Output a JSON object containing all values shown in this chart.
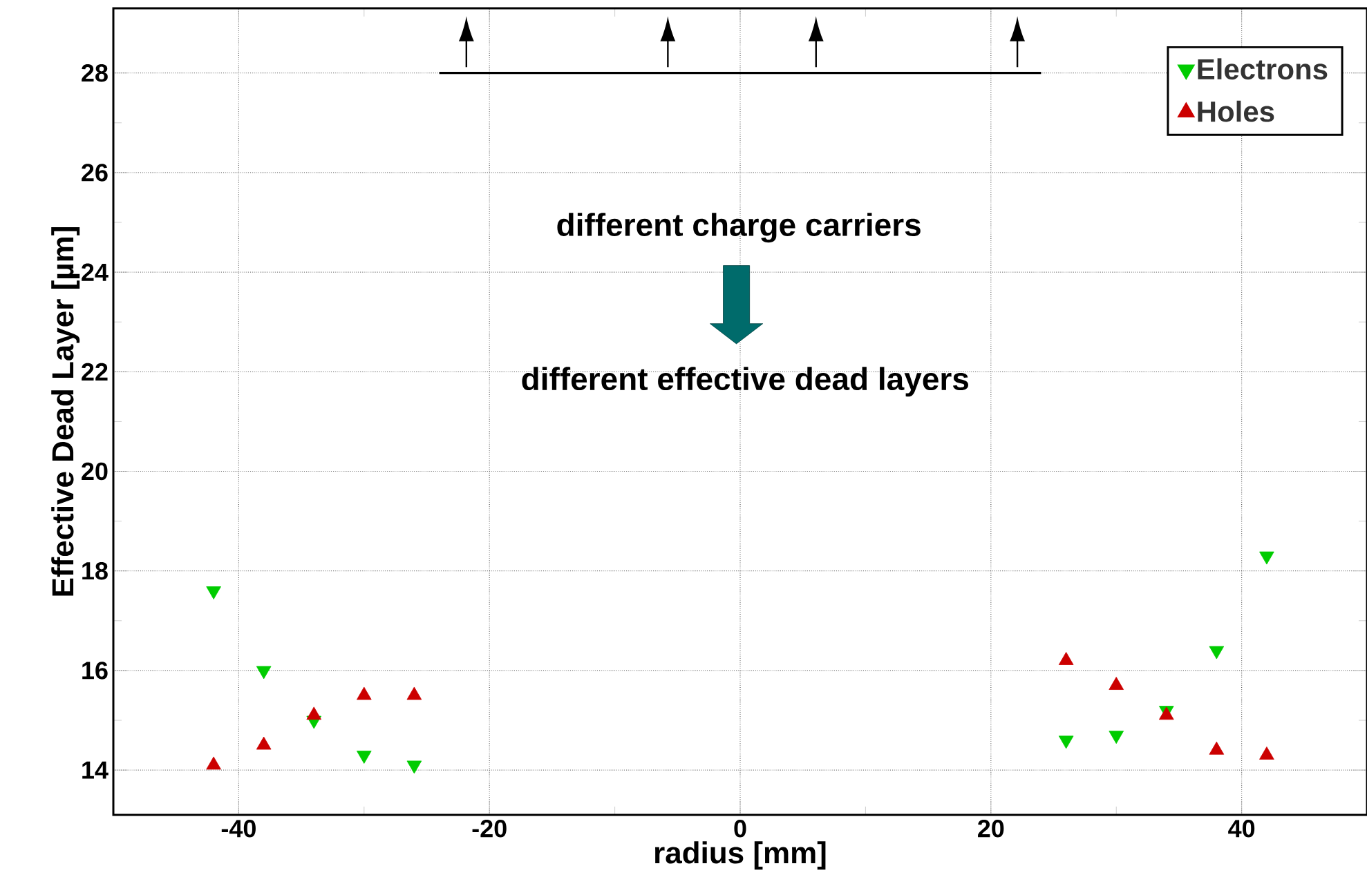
{
  "chart_data": {
    "type": "scatter",
    "xlabel": "radius [mm]",
    "ylabel": "Effective Dead Layer [µm]",
    "xlim": [
      -50,
      50
    ],
    "ylim": [
      13.1,
      29.3
    ],
    "xticks": [
      -40,
      -20,
      0,
      20,
      40
    ],
    "yticks": [
      14,
      16,
      18,
      20,
      22,
      24,
      26,
      28
    ],
    "grid": true,
    "legend": "top right",
    "annotations": [
      "different charge carriers",
      "different effective dead layers"
    ],
    "series": [
      {
        "name": "Electrons",
        "color": "#00cc00",
        "marker": "triangle-down",
        "x": [
          -42,
          -38,
          -34,
          -30,
          -26,
          26,
          30,
          34,
          38,
          42
        ],
        "values": [
          17.6,
          16.0,
          15.0,
          14.3,
          14.1,
          14.6,
          14.7,
          15.2,
          16.4,
          18.3
        ]
      },
      {
        "name": "Holes",
        "color": "#cc0000",
        "marker": "triangle",
        "x": [
          -42,
          -38,
          -34,
          -30,
          -26,
          26,
          30,
          34,
          38,
          42
        ],
        "values": [
          14.1,
          14.5,
          15.1,
          15.5,
          15.5,
          16.2,
          15.7,
          15.1,
          14.4,
          14.3
        ]
      },
      {
        "type": "line",
        "color": "#000000",
        "marker": "none",
        "x": [
          -24,
          24
        ],
        "values": [
          28.0,
          28.0
        ]
      }
    ]
  }
}
